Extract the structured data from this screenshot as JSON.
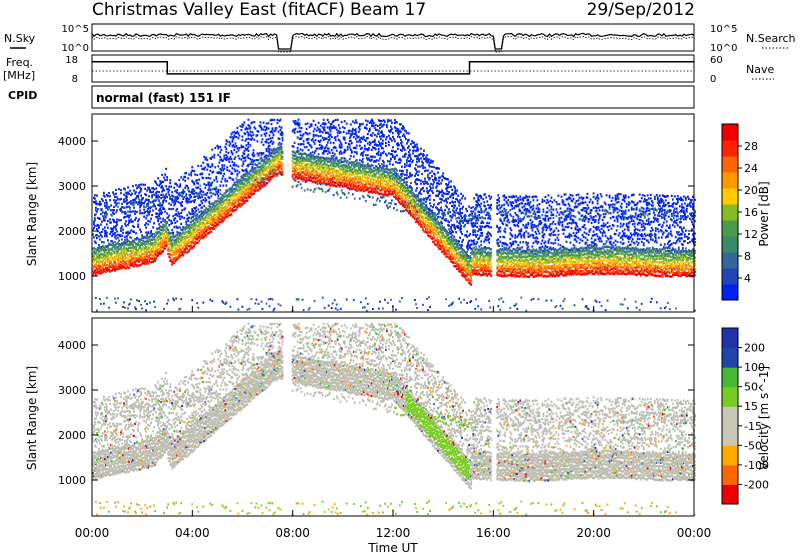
{
  "header": {
    "title": "Christmas Valley East (fitACF)",
    "beam": "Beam 17",
    "date": "29/Sep/2012"
  },
  "panel_labels": {
    "nsky": "N.Sky",
    "nsearch": "N.Search",
    "freq_line1": "Freq.",
    "freq_line2": "[MHz]",
    "nave": "Nave",
    "cpid": "CPID",
    "cpid_value": "normal (fast) 151 IF"
  },
  "noise_axis": {
    "left_ticks": [
      "10^5",
      "10^0"
    ],
    "right_ticks": [
      "10^5",
      "10^0"
    ]
  },
  "freq_axis": {
    "left_ticks": [
      "18",
      "8"
    ],
    "right_ticks": [
      "60",
      "0"
    ]
  },
  "colors": {
    "power": [
      "#0022ee",
      "#2244bb",
      "#336699",
      "#3a8a6a",
      "#4a9a4a",
      "#88bb22",
      "#ffcc00",
      "#ff9900",
      "#ff6600",
      "#ff2200",
      "#ee0000"
    ],
    "velocity": [
      "#ee0000",
      "#ff6600",
      "#ffaa00",
      "#c8c8b8",
      "#c8c8b8",
      "#77cc22",
      "#44bb33",
      "#3366bb",
      "#2233aa"
    ],
    "ground_scatter": "#bcbcb0"
  },
  "chart_data": [
    {
      "type": "heatmap",
      "name": "power",
      "ylabel": "Slant Range [km]",
      "yticks": [
        "1000",
        "2000",
        "3000",
        "4000"
      ],
      "ylim": [
        200,
        4600
      ],
      "xlim_hours": [
        0,
        24
      ],
      "colorbar_label": "Power [dB]",
      "colorbar_ticks": [
        "4",
        "8",
        "12",
        "16",
        "20",
        "24",
        "28"
      ],
      "colorbar_range": [
        0,
        32
      ],
      "data_gap_hours": [
        7.6,
        7.95
      ]
    },
    {
      "type": "heatmap",
      "name": "velocity",
      "ylabel": "Slant Range [km]",
      "yticks": [
        "1000",
        "2000",
        "3000",
        "4000"
      ],
      "ylim": [
        200,
        4600
      ],
      "xlim_hours": [
        0,
        24
      ],
      "colorbar_label": "Velocity [m s^-1]",
      "colorbar_ticks": [
        "-200",
        "-100",
        "-50",
        "-15",
        "15",
        "50",
        "100",
        "200"
      ]
    }
  ],
  "xaxis": {
    "label": "Time UT",
    "ticks": [
      "00:00",
      "04:00",
      "08:00",
      "12:00",
      "16:00",
      "20:00",
      "00:00"
    ],
    "tick_hours": [
      0,
      4,
      8,
      12,
      16,
      20,
      24
    ]
  },
  "frequency_steps": [
    {
      "from_h": 0,
      "to_h": 3,
      "level": 0.75
    },
    {
      "from_h": 3,
      "to_h": 15.05,
      "level": 0.3
    },
    {
      "from_h": 15.05,
      "to_h": 24,
      "level": 0.75
    }
  ]
}
